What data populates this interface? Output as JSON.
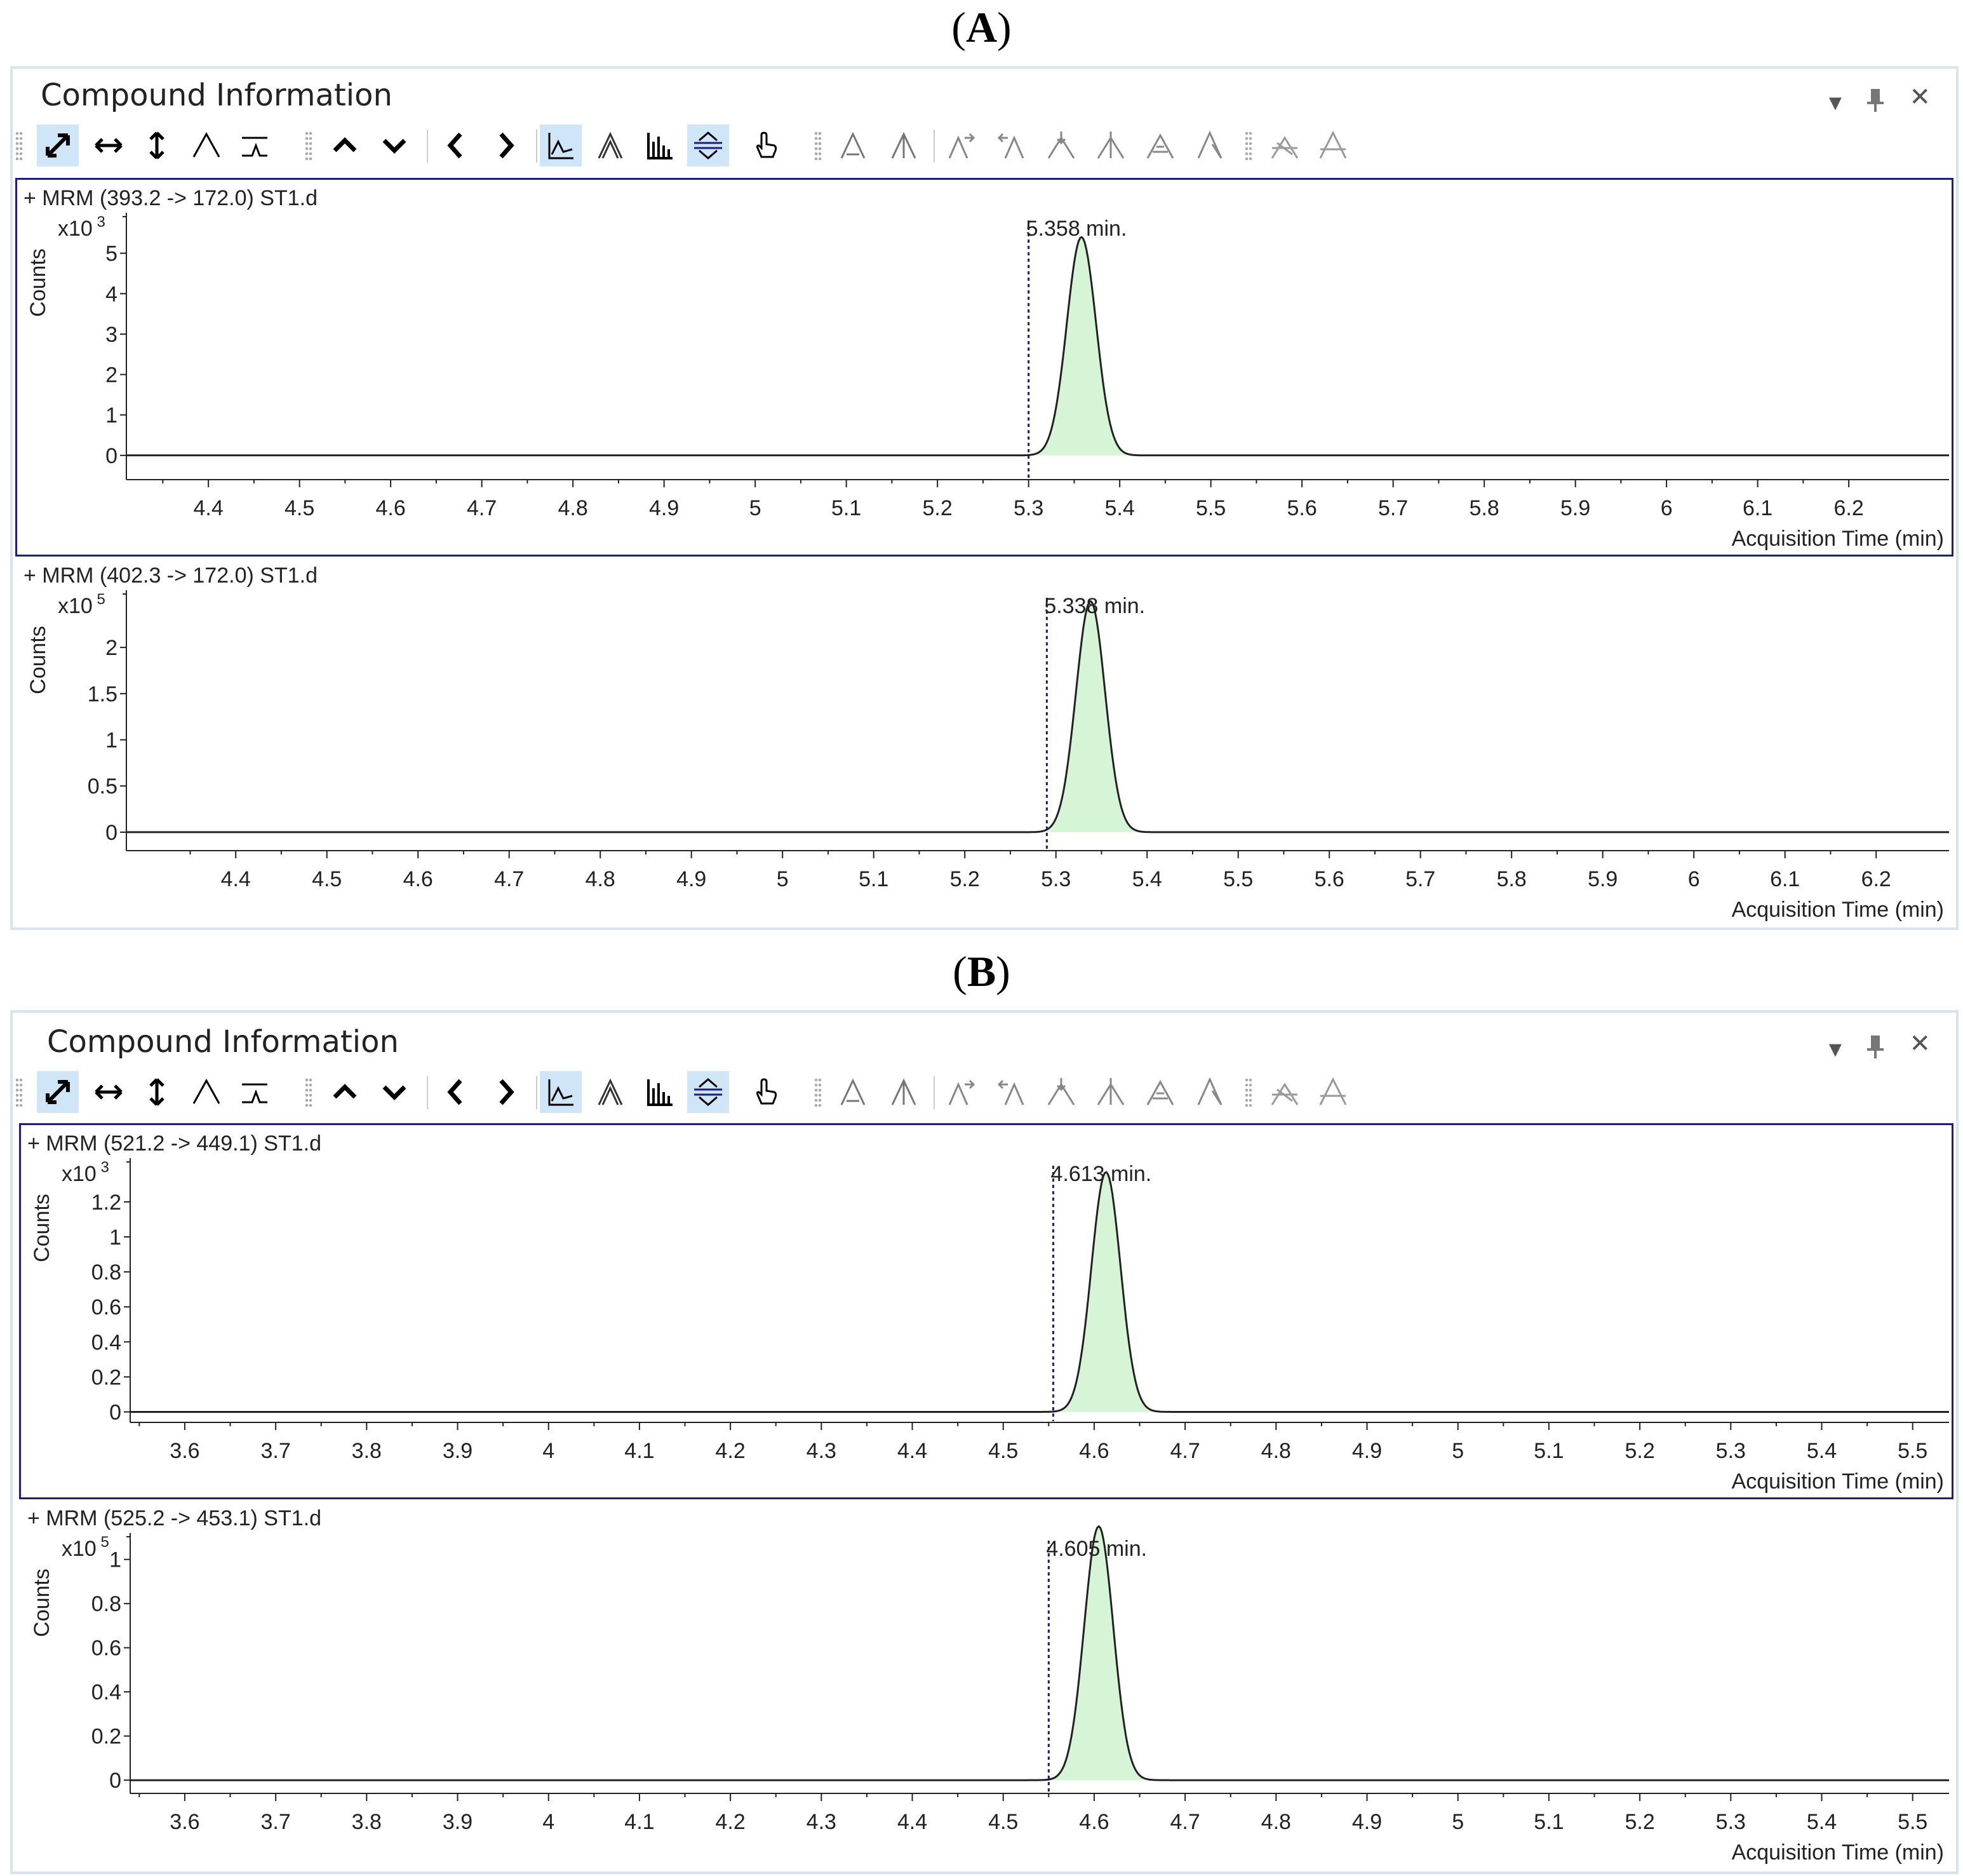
{
  "figure_labels": {
    "a": "A",
    "b": "B"
  },
  "panels": [
    {
      "title": "Compound Information",
      "controls": {
        "dropdown": "▾",
        "pin": "📌",
        "close": "✕"
      },
      "toolbar": {
        "buttons": [
          "autoscale-icon",
          "autoscale-x-icon",
          "autoscale-y-icon",
          "peak-icon",
          "baseline-icon",
          "up-icon",
          "down-icon",
          "previous-icon",
          "next-icon",
          "overlay-icon",
          "stack-icon",
          "bar-icon",
          "split-icon",
          "hand-icon",
          "integrate-icon",
          "peak-single-icon",
          "peak-add-right-icon",
          "peak-add-left-icon",
          "peak-down-icon",
          "peak-split-icon",
          "peak-merge-icon",
          "peak-edit-icon",
          "peak-delete-icon",
          "peak-clear-icon"
        ],
        "active": [
          0,
          9,
          12
        ]
      }
    },
    {
      "title": "Compound Information",
      "controls": {
        "dropdown": "▾",
        "pin": "📌",
        "close": "✕"
      },
      "toolbar": {
        "buttons": [
          "autoscale-icon",
          "autoscale-x-icon",
          "autoscale-y-icon",
          "peak-icon",
          "baseline-icon",
          "up-icon",
          "down-icon",
          "previous-icon",
          "next-icon",
          "overlay-icon",
          "stack-icon",
          "bar-icon",
          "split-icon",
          "hand-icon",
          "integrate-icon",
          "peak-single-icon",
          "peak-add-right-icon",
          "peak-add-left-icon",
          "peak-down-icon",
          "peak-split-icon",
          "peak-merge-icon",
          "peak-edit-icon",
          "peak-delete-icon",
          "peak-clear-icon"
        ],
        "active": [
          0,
          9,
          12
        ]
      }
    }
  ],
  "chart_data": [
    {
      "type": "line",
      "title": "+ MRM (393.2 -> 172.0) ST1.d",
      "ylabel": "Counts",
      "y_multiplier": "x10 3",
      "xlabel": "Acquisition Time (min)",
      "xlim": [
        4.31,
        6.31
      ],
      "ylim": [
        -0.6,
        6.0
      ],
      "xticks": [
        "4.4",
        "4.5",
        "4.6",
        "4.7",
        "4.8",
        "4.9",
        "5",
        "5.1",
        "5.2",
        "5.3",
        "5.4",
        "5.5",
        "5.6",
        "5.7",
        "5.8",
        "5.9",
        "6",
        "6.1",
        "6.2"
      ],
      "yticks": [
        "0",
        "1",
        "2",
        "3",
        "4",
        "5"
      ],
      "peak": {
        "rt": 5.358,
        "height": 5.4,
        "sigma": 0.016,
        "label": "5.358 min.",
        "start": 5.3,
        "end": 5.41
      },
      "marker_x": 5.3,
      "selected": true
    },
    {
      "type": "line",
      "title": "+ MRM (402.3 -> 172.0) ST1.d",
      "ylabel": "Counts",
      "y_multiplier": "x10 5",
      "xlabel": "Acquisition Time (min)",
      "xlim": [
        4.28,
        6.28
      ],
      "ylim": [
        -0.2,
        2.62
      ],
      "xticks": [
        "4.4",
        "4.5",
        "4.6",
        "4.7",
        "4.8",
        "4.9",
        "5",
        "5.1",
        "5.2",
        "5.3",
        "5.4",
        "5.5",
        "5.6",
        "5.7",
        "5.8",
        "5.9",
        "6",
        "6.1",
        "6.2"
      ],
      "yticks": [
        "0",
        "0.5",
        "1",
        "1.5",
        "2"
      ],
      "peak": {
        "rt": 5.338,
        "height": 2.5,
        "sigma": 0.016,
        "label": "5.338 min.",
        "start": 5.29,
        "end": 5.4
      },
      "marker_x": 5.29,
      "selected": false
    },
    {
      "type": "line",
      "title": "+ MRM (521.2 -> 449.1) ST1.d",
      "ylabel": "Counts",
      "y_multiplier": "x10 3",
      "xlabel": "Acquisition Time (min)",
      "xlim": [
        3.54,
        5.54
      ],
      "ylim": [
        -0.06,
        1.45
      ],
      "xticks": [
        "3.6",
        "3.7",
        "3.8",
        "3.9",
        "4",
        "4.1",
        "4.2",
        "4.3",
        "4.4",
        "4.5",
        "4.6",
        "4.7",
        "4.8",
        "4.9",
        "5",
        "5.1",
        "5.2",
        "5.3",
        "5.4",
        "5.5"
      ],
      "yticks": [
        "0",
        "0.2",
        "0.4",
        "0.6",
        "0.8",
        "1",
        "1.2"
      ],
      "peak": {
        "rt": 4.613,
        "height": 1.37,
        "sigma": 0.016,
        "label": "4.613 min.",
        "start": 4.56,
        "end": 4.67
      },
      "marker_x": 4.555,
      "selected": true
    },
    {
      "type": "line",
      "title": "+ MRM (525.2 -> 453.1) ST1.d",
      "ylabel": "Counts",
      "y_multiplier": "x10 5",
      "xlabel": "Acquisition Time (min)",
      "xlim": [
        3.54,
        5.54
      ],
      "ylim": [
        -0.06,
        1.12
      ],
      "xticks": [
        "3.6",
        "3.7",
        "3.8",
        "3.9",
        "4",
        "4.1",
        "4.2",
        "4.3",
        "4.4",
        "4.5",
        "4.6",
        "4.7",
        "4.8",
        "4.9",
        "5",
        "5.1",
        "5.2",
        "5.3",
        "5.4",
        "5.5"
      ],
      "yticks": [
        "0",
        "0.2",
        "0.4",
        "0.6",
        "0.8",
        "1"
      ],
      "peak": {
        "rt": 4.605,
        "height": 1.15,
        "sigma": 0.016,
        "label": "4.605 min.",
        "start": 4.55,
        "end": 4.67
      },
      "marker_x": 4.55,
      "selected": false
    }
  ]
}
